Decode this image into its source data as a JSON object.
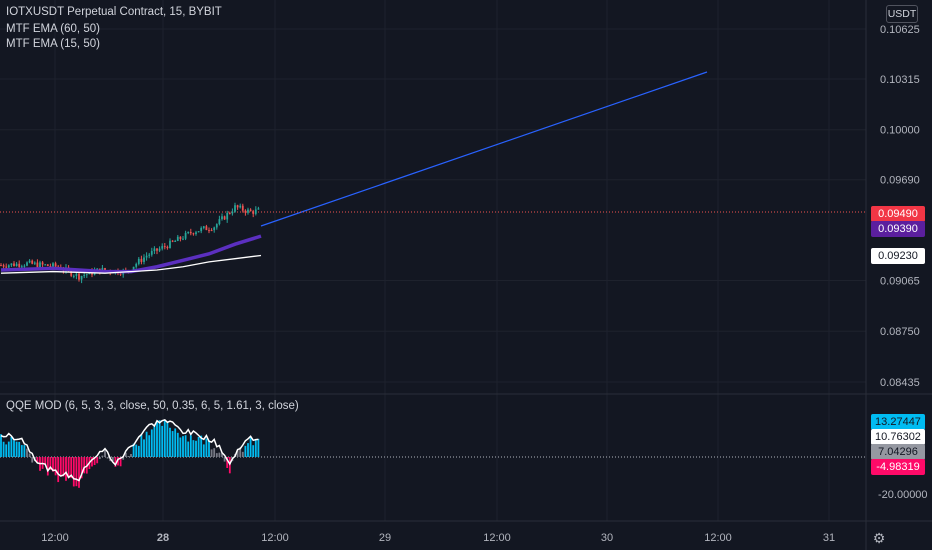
{
  "header": {
    "symbol_line": "IOTXUSDT Perpetual Contract, 15, BYBIT",
    "indicator1": "MTF EMA (60, 50)",
    "indicator2": "MTF EMA (15, 50)",
    "unit": "USDT"
  },
  "pane": {
    "indicator_title": "QQE MOD (6, 5, 3, 3, close, 50, 0.35, 6, 5, 1.61, 3, close)"
  },
  "price_axis": {
    "ticks": [
      "0.10625",
      "0.10315",
      "0.10000",
      "0.09690",
      "0.09065",
      "0.08750",
      "0.08435"
    ]
  },
  "price_labels": [
    {
      "text": "0.09490",
      "bg": "#f23645",
      "fg": "#ffffff"
    },
    {
      "text": "0.09390",
      "bg": "#5b1f9e",
      "fg": "#ffffff"
    },
    {
      "text": "0.09230",
      "bg": "#ffffff",
      "fg": "#131722"
    }
  ],
  "qqe_axis": {
    "tick": "-20.00000"
  },
  "qqe_labels": [
    {
      "text": "13.27447",
      "bg": "#00bcf2",
      "fg": "#131722"
    },
    {
      "text": "10.76302",
      "bg": "#ffffff",
      "fg": "#131722"
    },
    {
      "text": "7.04296",
      "bg": "#9598a1",
      "fg": "#131722"
    },
    {
      "text": "-4.98319",
      "bg": "#ff0a68",
      "fg": "#ffffff"
    }
  ],
  "time_axis": {
    "ticks": [
      "12:00",
      "28",
      "12:00",
      "29",
      "12:00",
      "30",
      "12:00",
      "31"
    ]
  },
  "icons": {
    "settings": "gear-icon"
  },
  "colors": {
    "background": "#131722",
    "up": "#26a69a",
    "down": "#ef5350",
    "ema_slow": "#5b2fc0",
    "ema_fast": "#ffffff",
    "trendline": "#2962ff",
    "qqe_up": "#00bcf2",
    "qqe_down": "#ff0a68",
    "qqe_neutral": "#787b86"
  }
}
